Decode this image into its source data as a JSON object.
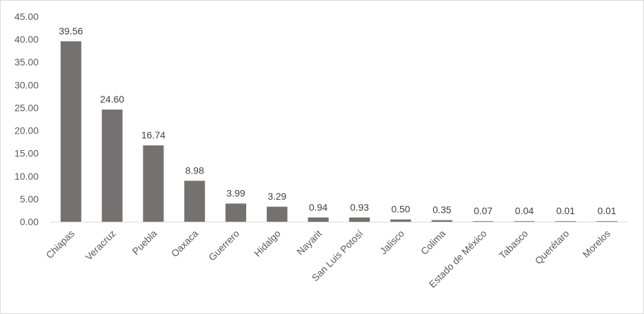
{
  "chart_data": {
    "type": "bar",
    "title": "",
    "xlabel": "",
    "ylabel": "",
    "ylim": [
      0,
      45
    ],
    "yticks": [
      "0.00",
      "5.00",
      "10.00",
      "15.00",
      "20.00",
      "25.00",
      "30.00",
      "35.00",
      "40.00",
      "45.00"
    ],
    "grid": false,
    "legend": "none",
    "bar_color": "#767171",
    "categories": [
      "Chiapas",
      "Veracruz",
      "Puebla",
      "Oaxaca",
      "Guerrero",
      "Hidalgo",
      "Nayarit",
      "San Luis Potosí",
      "Jalisco",
      "Colima",
      "Estado de México",
      "Tabasco",
      "Querétaro",
      "Morelos"
    ],
    "values": [
      39.56,
      24.6,
      16.74,
      8.98,
      3.99,
      3.29,
      0.94,
      0.93,
      0.5,
      0.35,
      0.07,
      0.04,
      0.01,
      0.01
    ],
    "data_labels": [
      "39.56",
      "24.60",
      "16.74",
      "8.98",
      "3.99",
      "3.29",
      "0.94",
      "0.93",
      "0.50",
      "0.35",
      "0.07",
      "0.04",
      "0.01",
      "0.01"
    ]
  }
}
